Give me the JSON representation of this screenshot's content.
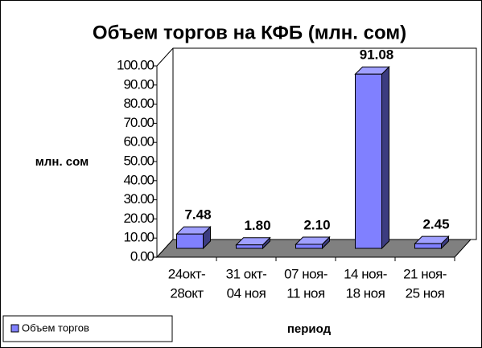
{
  "chart_data": {
    "type": "bar3d",
    "title": "Объем торгов на КФБ (млн. сом)",
    "y_label": "млн. сом",
    "x_label": "период",
    "categories": [
      [
        "24окт-",
        "28окт"
      ],
      [
        "31 окт-",
        "04 ноя"
      ],
      [
        "07 ноя-",
        "11 ноя"
      ],
      [
        "14 ноя-",
        "18 ноя"
      ],
      [
        "21 ноя-",
        "25 ноя"
      ]
    ],
    "series": [
      {
        "name": "Объем торгов",
        "color": "#8080ff",
        "values": [
          7.48,
          1.8,
          2.1,
          91.08,
          2.45
        ],
        "value_labels": [
          "7.48",
          "1.80",
          "2.10",
          "91.08",
          "2.45"
        ]
      }
    ],
    "ylim": [
      0,
      100
    ],
    "yticks": [
      {
        "value": 0,
        "label": "0.00"
      },
      {
        "value": 10,
        "label": "10.00"
      },
      {
        "value": 20,
        "label": "20.00"
      },
      {
        "value": 30,
        "label": "30.00"
      },
      {
        "value": 40,
        "label": "40.00"
      },
      {
        "value": 50,
        "label": "50.00"
      },
      {
        "value": 60,
        "label": "60.00"
      },
      {
        "value": 70,
        "label": "70.00"
      },
      {
        "value": 80,
        "label": "80.00"
      },
      {
        "value": 90,
        "label": "90.00"
      },
      {
        "value": 100,
        "label": "100.00"
      }
    ],
    "legend": "bottom-left"
  }
}
